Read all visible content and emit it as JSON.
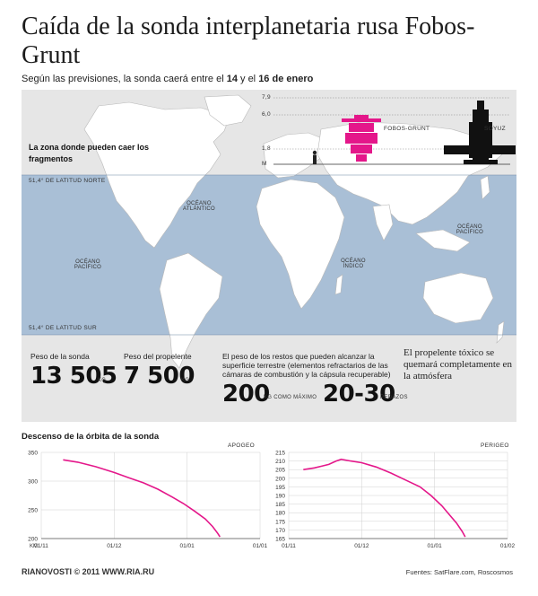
{
  "header": {
    "title": "Caída de la sonda interplanetaria rusa Fobos-Grunt",
    "subtitle_pre": "Según las previsiones, la sonda caerá entre el ",
    "subtitle_d1": "14",
    "subtitle_mid": " y el ",
    "subtitle_d2": "16 de enero"
  },
  "map": {
    "zone_text": "La zona donde pueden caer los fragmentos",
    "lat_north": "51,4° DE LATITUD NORTE",
    "lat_south": "51,4° DE LATITUD SUR",
    "ocean_atlantic": "OCÉANO ATLÁNTICO",
    "ocean_pacific_w": "OCÉANO PACÍFICO",
    "ocean_pacific_e": "OCÉANO PACÍFICO",
    "ocean_indian": "OCÉANO ÍNDICO",
    "colors": {
      "band": "#a9bfd6",
      "land": "#ffffff",
      "outside": "#e6e6e6",
      "accent": "#e4178a"
    }
  },
  "scale": {
    "ticks": [
      "7,9",
      "6,0",
      "1,8",
      "M"
    ],
    "fobos_label": "FOBOS-GRUNT",
    "soyuz_label": "SOYUZ"
  },
  "stats": {
    "probe_weight_label": "Peso de la sonda",
    "probe_weight_value": "13 505",
    "probe_weight_unit": "KG",
    "propellant_label": "Peso del propelente",
    "propellant_value": "7 500",
    "propellant_unit": "KG",
    "debris_label": "El peso de los restos que pueden alcanzar la superficie terrestre (elementos refractarios de las cámaras de combustión y la cápsula recuperable)",
    "debris_value": "200",
    "debris_unit": "KG COMO MÁXIMO",
    "pieces_value": "20-30",
    "pieces_unit": "PEDAZOS",
    "propellant_note": "El propelente tóxico se quemará completamente en la atmósfera"
  },
  "descent": {
    "title": "Descenso de la órbita de la sonda",
    "apogee_label": "APOGEO",
    "perigee_label": "PERIGEO",
    "km": "KM"
  },
  "chart_data": [
    {
      "type": "line",
      "title": "APOGEO",
      "ylabel": "KM",
      "ylim": [
        200,
        350
      ],
      "y_ticks": [
        350,
        300,
        250,
        200
      ],
      "x_ticks": [
        "01/11",
        "01/12",
        "01/01",
        "01/01"
      ],
      "series": [
        {
          "values": [
            [
              0.3,
              337
            ],
            [
              0.5,
              333
            ],
            [
              0.75,
              325
            ],
            [
              1.0,
              315
            ],
            [
              1.2,
              306
            ],
            [
              1.4,
              297
            ],
            [
              1.6,
              286
            ],
            [
              1.8,
              272
            ],
            [
              1.95,
              261
            ],
            [
              2.1,
              248
            ],
            [
              2.25,
              234
            ],
            [
              2.35,
              221
            ],
            [
              2.42,
              209
            ],
            [
              2.45,
              203
            ]
          ]
        }
      ],
      "color": "#e4178a"
    },
    {
      "type": "line",
      "title": "PERIGEO",
      "ylim": [
        165,
        215
      ],
      "y_ticks": [
        215,
        210,
        205,
        200,
        195,
        190,
        185,
        180,
        175,
        170,
        165
      ],
      "x_ticks": [
        "01/11",
        "01/12",
        "01/01",
        "01/02"
      ],
      "series": [
        {
          "values": [
            [
              0.2,
              205
            ],
            [
              0.35,
              206
            ],
            [
              0.45,
              207
            ],
            [
              0.55,
              208
            ],
            [
              0.65,
              210
            ],
            [
              0.72,
              211
            ],
            [
              0.85,
              210
            ],
            [
              1.0,
              209
            ],
            [
              1.2,
              206.5
            ],
            [
              1.4,
              203
            ],
            [
              1.6,
              199
            ],
            [
              1.8,
              195
            ],
            [
              1.95,
              190
            ],
            [
              2.1,
              184
            ],
            [
              2.2,
              179
            ],
            [
              2.3,
              174
            ],
            [
              2.38,
              169
            ],
            [
              2.42,
              166
            ]
          ]
        }
      ],
      "color": "#e4178a"
    }
  ],
  "footer": {
    "logo": "RIANOVOSTI © 2011 WWW.RIA.RU",
    "sources": "Fuentes: SatFlare.com, Roscosmos"
  }
}
